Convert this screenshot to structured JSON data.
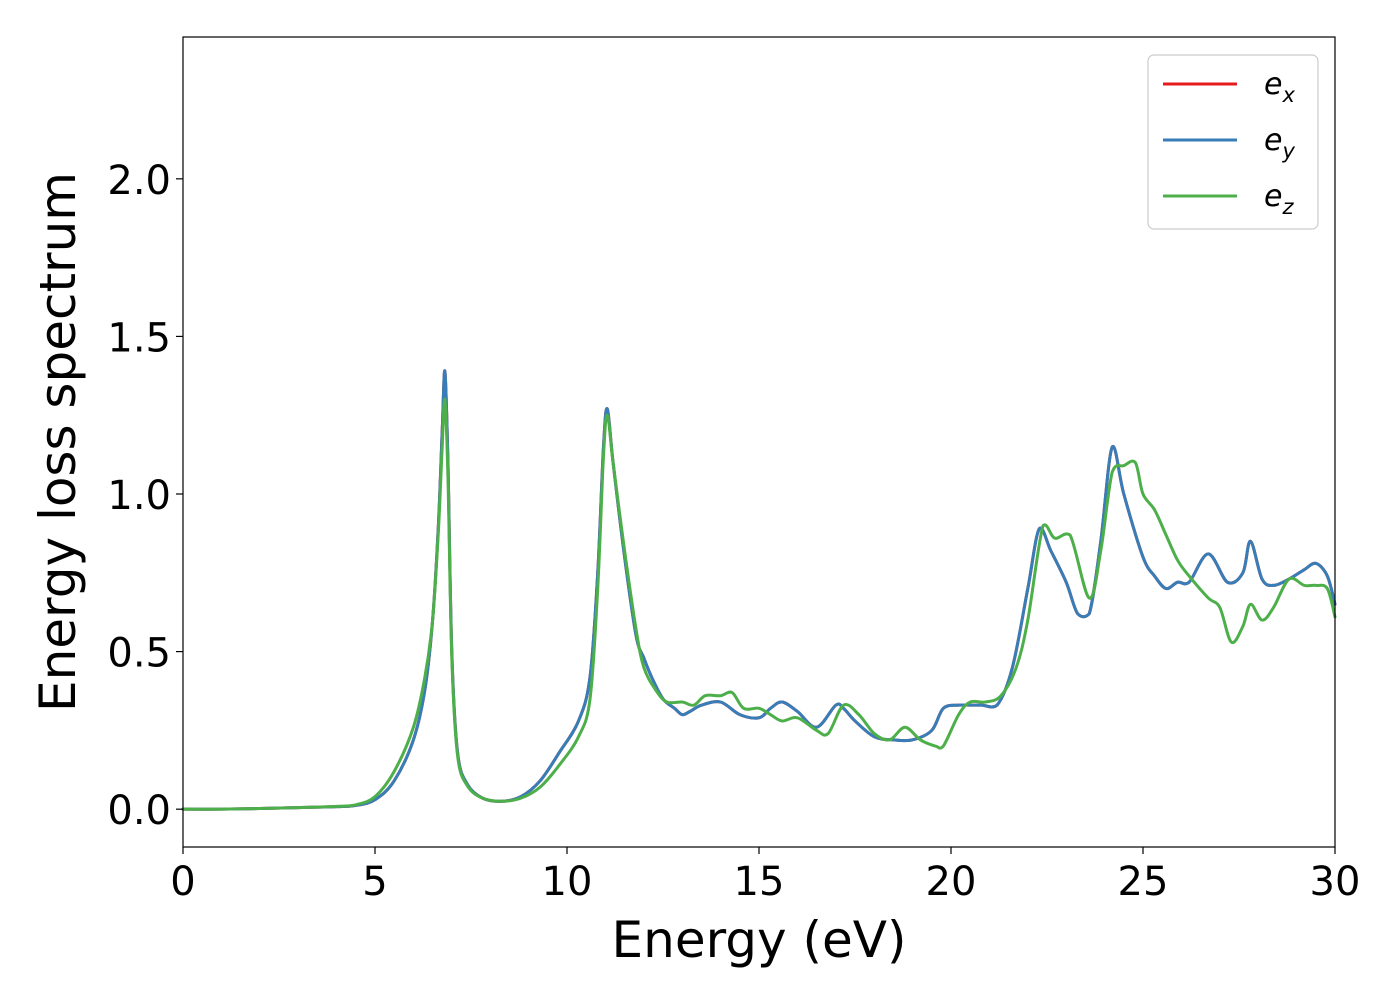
{
  "chart_data": {
    "type": "line",
    "title": "",
    "xlabel": "Energy (eV)",
    "ylabel": "Energy loss spectrum",
    "xlim": [
      0,
      30
    ],
    "ylim": [
      -0.12,
      2.45
    ],
    "xticks": [
      0,
      5,
      10,
      15,
      20,
      25,
      30
    ],
    "xtick_labels": [
      "0",
      "5",
      "10",
      "15",
      "20",
      "25",
      "30"
    ],
    "yticks": [
      0.0,
      0.5,
      1.0,
      1.5,
      2.0
    ],
    "ytick_labels": [
      "0.0",
      "0.5",
      "1.0",
      "1.5",
      "2.0"
    ],
    "grid": false,
    "legend_position": "top-right",
    "series": [
      {
        "name": "e_x",
        "label_base": "e",
        "label_sub": "x",
        "color": "#e41a1c",
        "x": [
          0,
          1,
          2,
          3,
          4,
          4.5,
          5,
          5.5,
          6,
          6.3,
          6.5,
          6.65,
          6.75,
          6.82,
          6.9,
          7.0,
          7.15,
          7.4,
          7.8,
          8.3,
          8.8,
          9.3,
          9.8,
          10.3,
          10.6,
          10.8,
          10.95,
          11.05,
          11.2,
          11.5,
          11.8,
          12.0,
          12.2,
          12.5,
          12.8,
          13.0,
          13.2,
          13.5,
          14.0,
          14.5,
          15.0,
          15.3,
          15.6,
          16.0,
          16.5,
          17.0,
          17.2,
          17.5,
          18.0,
          18.5,
          19.0,
          19.5,
          19.8,
          20.2,
          20.5,
          20.8,
          21.2,
          21.6,
          22.0,
          22.3,
          22.6,
          23.0,
          23.3,
          23.6,
          23.9,
          24.2,
          24.5,
          25.0,
          25.3,
          25.6,
          25.9,
          26.2,
          26.7,
          27.2,
          27.6,
          27.8,
          28.1,
          28.4,
          28.8,
          29.2,
          29.5,
          29.8,
          30.0
        ],
        "y": [
          0.0,
          0.0,
          0.002,
          0.005,
          0.008,
          0.012,
          0.03,
          0.09,
          0.22,
          0.38,
          0.6,
          0.9,
          1.2,
          1.39,
          1.1,
          0.5,
          0.18,
          0.08,
          0.035,
          0.025,
          0.04,
          0.09,
          0.18,
          0.28,
          0.42,
          0.75,
          1.15,
          1.27,
          1.1,
          0.8,
          0.55,
          0.48,
          0.42,
          0.35,
          0.32,
          0.3,
          0.31,
          0.33,
          0.34,
          0.3,
          0.29,
          0.32,
          0.34,
          0.31,
          0.26,
          0.33,
          0.32,
          0.28,
          0.23,
          0.22,
          0.22,
          0.25,
          0.32,
          0.33,
          0.33,
          0.33,
          0.33,
          0.45,
          0.7,
          0.89,
          0.82,
          0.72,
          0.62,
          0.62,
          0.85,
          1.15,
          1.0,
          0.8,
          0.74,
          0.7,
          0.72,
          0.72,
          0.81,
          0.72,
          0.75,
          0.85,
          0.73,
          0.71,
          0.73,
          0.76,
          0.78,
          0.74,
          0.65
        ]
      },
      {
        "name": "e_y",
        "label_base": "e",
        "label_sub": "y",
        "color": "#377eb8",
        "x": [
          0,
          1,
          2,
          3,
          4,
          4.5,
          5,
          5.5,
          6,
          6.3,
          6.5,
          6.65,
          6.75,
          6.82,
          6.9,
          7.0,
          7.15,
          7.4,
          7.8,
          8.3,
          8.8,
          9.3,
          9.8,
          10.3,
          10.6,
          10.8,
          10.95,
          11.05,
          11.2,
          11.5,
          11.8,
          12.0,
          12.2,
          12.5,
          12.8,
          13.0,
          13.2,
          13.5,
          14.0,
          14.5,
          15.0,
          15.3,
          15.6,
          16.0,
          16.5,
          17.0,
          17.2,
          17.5,
          18.0,
          18.5,
          19.0,
          19.5,
          19.8,
          20.2,
          20.5,
          20.8,
          21.2,
          21.6,
          22.0,
          22.3,
          22.6,
          23.0,
          23.3,
          23.6,
          23.9,
          24.2,
          24.5,
          25.0,
          25.3,
          25.6,
          25.9,
          26.2,
          26.7,
          27.2,
          27.6,
          27.8,
          28.1,
          28.4,
          28.8,
          29.2,
          29.5,
          29.8,
          30.0
        ],
        "y": [
          0.0,
          0.0,
          0.002,
          0.005,
          0.008,
          0.012,
          0.03,
          0.09,
          0.22,
          0.38,
          0.6,
          0.9,
          1.2,
          1.39,
          1.1,
          0.5,
          0.18,
          0.08,
          0.035,
          0.025,
          0.04,
          0.09,
          0.18,
          0.28,
          0.42,
          0.75,
          1.15,
          1.27,
          1.1,
          0.8,
          0.55,
          0.48,
          0.42,
          0.35,
          0.32,
          0.3,
          0.31,
          0.33,
          0.34,
          0.3,
          0.29,
          0.32,
          0.34,
          0.31,
          0.26,
          0.33,
          0.32,
          0.28,
          0.23,
          0.22,
          0.22,
          0.25,
          0.32,
          0.33,
          0.33,
          0.33,
          0.33,
          0.45,
          0.7,
          0.89,
          0.82,
          0.72,
          0.62,
          0.62,
          0.85,
          1.15,
          1.0,
          0.8,
          0.74,
          0.7,
          0.72,
          0.72,
          0.81,
          0.72,
          0.75,
          0.85,
          0.73,
          0.71,
          0.73,
          0.76,
          0.78,
          0.74,
          0.65
        ]
      },
      {
        "name": "e_z",
        "label_base": "e",
        "label_sub": "z",
        "color": "#4daf4a",
        "x": [
          0,
          1,
          2,
          3,
          4,
          4.5,
          5,
          5.5,
          6,
          6.3,
          6.5,
          6.65,
          6.75,
          6.82,
          6.9,
          7.0,
          7.15,
          7.4,
          7.8,
          8.3,
          8.8,
          9.3,
          9.8,
          10.3,
          10.6,
          10.8,
          10.95,
          11.05,
          11.2,
          11.5,
          11.8,
          12.0,
          12.3,
          12.6,
          13.0,
          13.3,
          13.6,
          14.0,
          14.3,
          14.6,
          15.0,
          15.3,
          15.6,
          16.0,
          16.5,
          16.8,
          17.2,
          17.6,
          18.0,
          18.4,
          18.8,
          19.2,
          19.6,
          19.8,
          20.2,
          20.5,
          20.9,
          21.3,
          21.7,
          22.0,
          22.4,
          22.7,
          23.1,
          23.6,
          23.9,
          24.2,
          24.5,
          24.8,
          25.0,
          25.3,
          25.6,
          25.9,
          26.2,
          26.7,
          27.0,
          27.3,
          27.6,
          27.8,
          28.1,
          28.4,
          28.8,
          29.2,
          29.5,
          29.8,
          30.0
        ],
        "y": [
          0.0,
          0.0,
          0.002,
          0.005,
          0.009,
          0.014,
          0.04,
          0.12,
          0.26,
          0.42,
          0.6,
          0.88,
          1.15,
          1.3,
          1.05,
          0.48,
          0.17,
          0.075,
          0.035,
          0.025,
          0.035,
          0.07,
          0.14,
          0.23,
          0.35,
          0.7,
          1.12,
          1.25,
          1.1,
          0.82,
          0.57,
          0.45,
          0.38,
          0.34,
          0.34,
          0.33,
          0.36,
          0.36,
          0.37,
          0.32,
          0.32,
          0.3,
          0.28,
          0.29,
          0.25,
          0.24,
          0.33,
          0.3,
          0.24,
          0.22,
          0.26,
          0.22,
          0.2,
          0.2,
          0.3,
          0.34,
          0.34,
          0.36,
          0.45,
          0.6,
          0.9,
          0.86,
          0.87,
          0.67,
          0.82,
          1.07,
          1.09,
          1.1,
          1.0,
          0.95,
          0.87,
          0.79,
          0.74,
          0.67,
          0.64,
          0.53,
          0.58,
          0.65,
          0.6,
          0.64,
          0.73,
          0.71,
          0.71,
          0.7,
          0.61
        ]
      }
    ]
  }
}
